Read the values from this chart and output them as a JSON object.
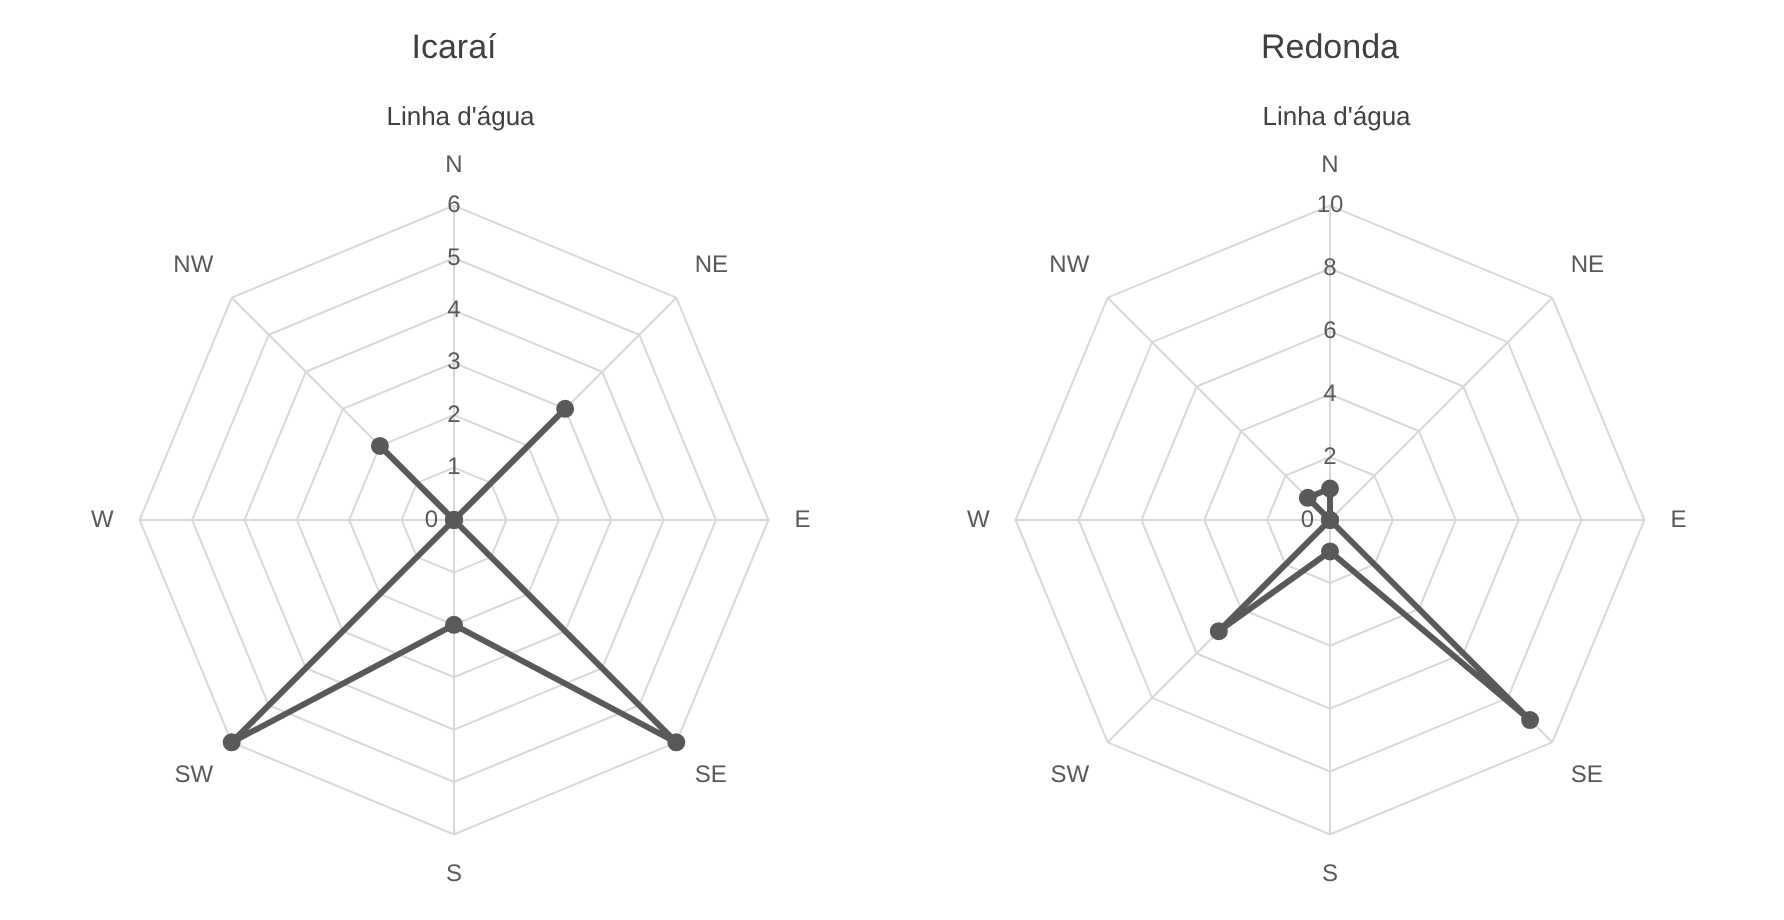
{
  "chart_data": [
    {
      "type": "radar",
      "title": "Icaraí",
      "categories": [
        "N",
        "NE",
        "E",
        "SE",
        "S",
        "SW",
        "W",
        "NW"
      ],
      "series": [
        {
          "name": "Linha d'água",
          "color": "#595959",
          "values": [
            0,
            3,
            0,
            6,
            2,
            6,
            0,
            2
          ]
        }
      ],
      "ylim": [
        0,
        6
      ],
      "yticks": [
        0,
        1,
        2,
        3,
        4,
        5,
        6
      ],
      "legend": "top",
      "marker": "circle",
      "grid": true
    },
    {
      "type": "radar",
      "title": "Redonda",
      "categories": [
        "N",
        "NE",
        "E",
        "SE",
        "S",
        "SW",
        "W",
        "NW"
      ],
      "series": [
        {
          "name": "Linha d'água",
          "color": "#595959",
          "values": [
            1,
            0,
            0,
            9,
            1,
            5,
            0,
            1
          ]
        }
      ],
      "ylim": [
        0,
        10
      ],
      "yticks": [
        0,
        2,
        4,
        6,
        8,
        10
      ],
      "legend": "top",
      "marker": "circle",
      "grid": true
    }
  ]
}
